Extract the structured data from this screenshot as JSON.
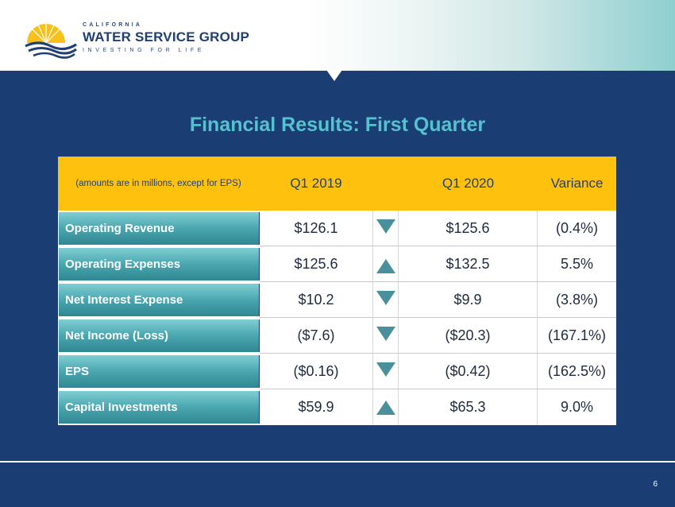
{
  "logo": {
    "top": "CALIFORNIA",
    "main": "WATER SERVICE GROUP",
    "tagline": "INVESTING FOR LIFE",
    "icon": "sun-water-icon"
  },
  "title": "Financial Results: First Quarter",
  "table": {
    "note": "(amounts are in millions, except for EPS)",
    "col1": "Q1 2019",
    "col2": "Q1 2020",
    "col3": "Variance",
    "rows": [
      {
        "label": "Operating Revenue",
        "q1_2019": "$126.1",
        "q1_2020": "$125.6",
        "variance": "(0.4%)",
        "trend": "down"
      },
      {
        "label": "Operating Expenses",
        "q1_2019": "$125.6",
        "q1_2020": "$132.5",
        "variance": "5.5%",
        "trend": "up"
      },
      {
        "label": "Net Interest Expense",
        "q1_2019": "$10.2",
        "q1_2020": "$9.9",
        "variance": "(3.8%)",
        "trend": "down"
      },
      {
        "label": "Net Income (Loss)",
        "q1_2019": "($7.6)",
        "q1_2020": "($20.3)",
        "variance": "(167.1%)",
        "trend": "down"
      },
      {
        "label": "EPS",
        "q1_2019": "($0.16)",
        "q1_2020": "($0.42)",
        "variance": "(162.5%)",
        "trend": "down"
      },
      {
        "label": "Capital Investments",
        "q1_2019": "$59.9",
        "q1_2020": "$65.3",
        "variance": "9.0%",
        "trend": "up"
      }
    ]
  },
  "page_number": "6",
  "colors": {
    "background": "#1a3e74",
    "title": "#56c1cf",
    "header_band": "#fec20e",
    "label_cell": "#4aa6b0",
    "arrow": "#4a8f9c"
  }
}
